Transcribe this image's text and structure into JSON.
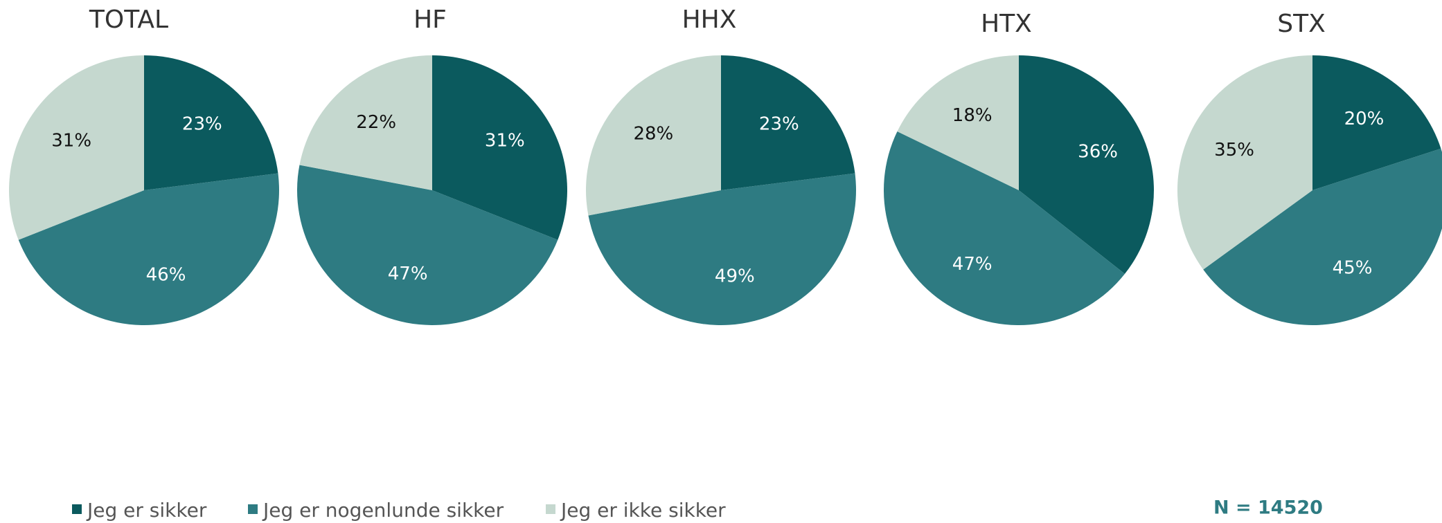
{
  "chart_data": [
    {
      "type": "pie",
      "title": "TOTAL",
      "values": [
        23,
        46,
        31
      ],
      "value_labels": [
        "23%",
        "46%",
        "31%"
      ]
    },
    {
      "type": "pie",
      "title": "HF",
      "values": [
        31,
        47,
        22
      ],
      "value_labels": [
        "31%",
        "47%",
        "22%"
      ]
    },
    {
      "type": "pie",
      "title": "HHX",
      "values": [
        23,
        49,
        28
      ],
      "value_labels": [
        "23%",
        "49%",
        "28%"
      ]
    },
    {
      "type": "pie",
      "title": "HTX",
      "values": [
        36,
        47,
        18
      ],
      "value_labels": [
        "36%",
        "47%",
        "18%"
      ]
    },
    {
      "type": "pie",
      "title": "STX",
      "values": [
        20,
        45,
        35
      ],
      "value_labels": [
        "20%",
        "45%",
        "35%"
      ]
    }
  ],
  "legend": [
    {
      "name": "Jeg er sikker",
      "color": "#0b5a5e",
      "label_color": "#ffffff"
    },
    {
      "name": "Jeg er nogenlunde sikker",
      "color": "#2e7b82",
      "label_color": "#ffffff"
    },
    {
      "name": "Jeg er ikke sikker",
      "color": "#c5d8cf",
      "label_color": "#111111"
    }
  ],
  "note": "N = 14520"
}
